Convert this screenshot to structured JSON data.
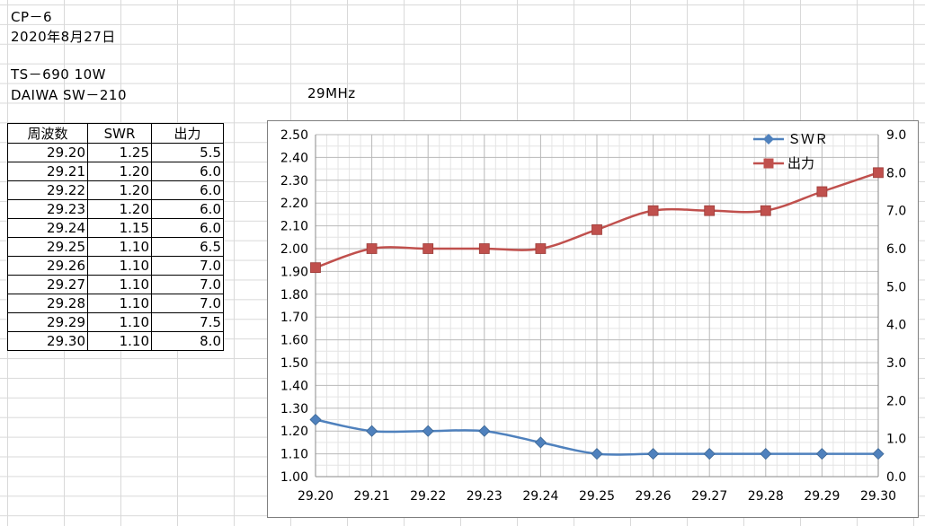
{
  "sheet": {
    "line1": "CP－6",
    "line2": "2020年8月27日",
    "line3": "TS－690  10W",
    "line4": "DAIWA  SW－210",
    "band": "29MHz"
  },
  "table": {
    "headers": [
      "周波数",
      "SWR",
      "出力"
    ],
    "rows": [
      [
        "29.20",
        "1.25",
        "5.5"
      ],
      [
        "29.21",
        "1.20",
        "6.0"
      ],
      [
        "29.22",
        "1.20",
        "6.0"
      ],
      [
        "29.23",
        "1.20",
        "6.0"
      ],
      [
        "29.24",
        "1.15",
        "6.0"
      ],
      [
        "29.25",
        "1.10",
        "6.5"
      ],
      [
        "29.26",
        "1.10",
        "7.0"
      ],
      [
        "29.27",
        "1.10",
        "7.0"
      ],
      [
        "29.28",
        "1.10",
        "7.0"
      ],
      [
        "29.29",
        "1.10",
        "7.5"
      ],
      [
        "29.30",
        "1.10",
        "8.0"
      ]
    ]
  },
  "chart_data": {
    "type": "line",
    "categories": [
      "29.20",
      "29.21",
      "29.22",
      "29.23",
      "29.24",
      "29.25",
      "29.26",
      "29.27",
      "29.28",
      "29.29",
      "29.30"
    ],
    "series": [
      {
        "name": "ＳＷＲ",
        "axis": "left",
        "color": "#4f81bd",
        "marker": "diamond",
        "values": [
          1.25,
          1.2,
          1.2,
          1.2,
          1.15,
          1.1,
          1.1,
          1.1,
          1.1,
          1.1,
          1.1
        ]
      },
      {
        "name": "出力",
        "axis": "right",
        "color": "#c0504d",
        "marker": "square",
        "values": [
          5.5,
          6.0,
          6.0,
          6.0,
          6.0,
          6.5,
          7.0,
          7.0,
          7.0,
          7.5,
          8.0
        ]
      }
    ],
    "y_left": {
      "min": 1.0,
      "max": 2.5,
      "step": 0.1,
      "ticks": [
        "1.00",
        "1.10",
        "1.20",
        "1.30",
        "1.40",
        "1.50",
        "1.60",
        "1.70",
        "1.80",
        "1.90",
        "2.00",
        "2.10",
        "2.20",
        "2.30",
        "2.40",
        "2.50"
      ]
    },
    "y_right": {
      "min": 0.0,
      "max": 9.0,
      "step": 1.0,
      "ticks": [
        "0.0",
        "1.0",
        "2.0",
        "3.0",
        "4.0",
        "5.0",
        "6.0",
        "7.0",
        "8.0",
        "9.0"
      ]
    },
    "grid": true,
    "legend": "top-right",
    "smooth": true
  }
}
